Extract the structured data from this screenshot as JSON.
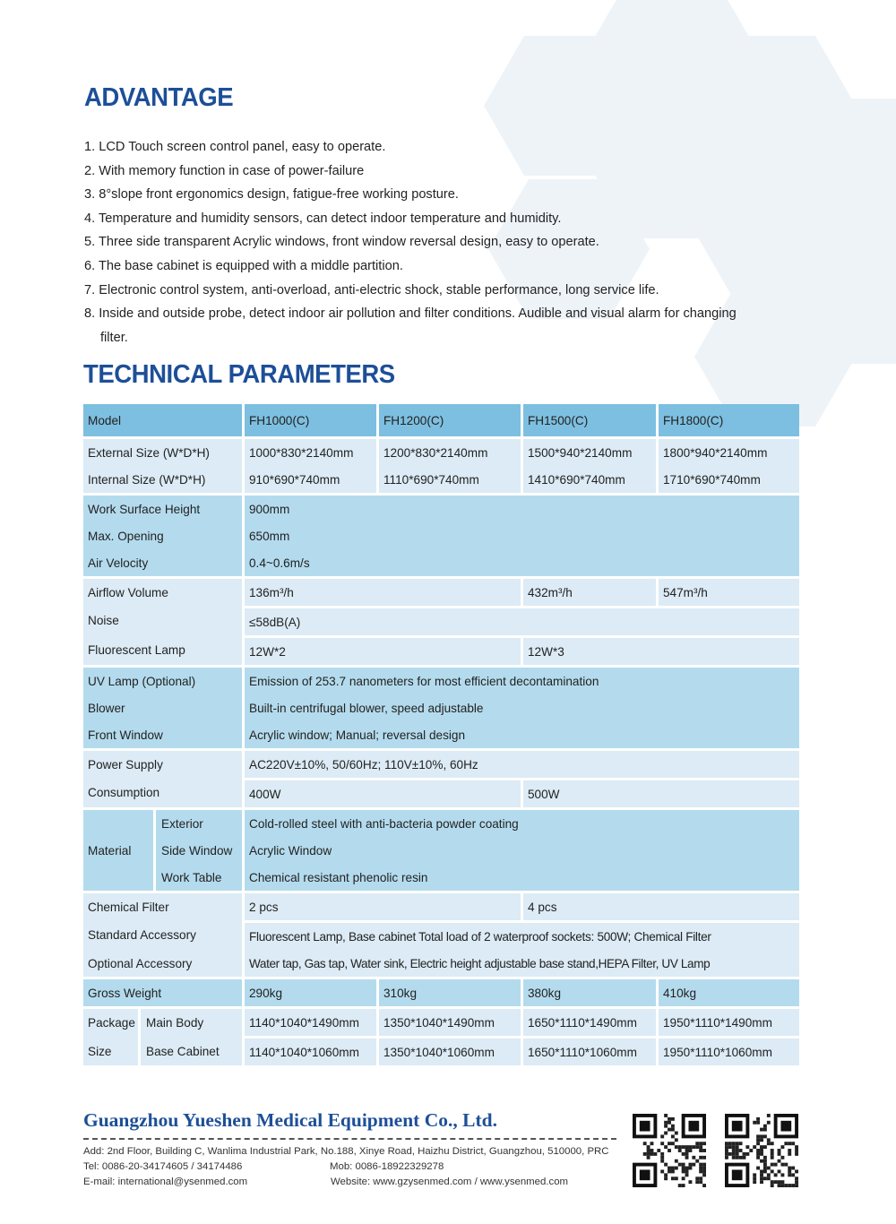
{
  "advantage": {
    "title": "ADVANTAGE",
    "items": [
      "1. LCD Touch screen control panel, easy to operate.",
      "2. With memory function in case of power-failure",
      "3. 8°slope front ergonomics design, fatigue-free working posture.",
      "4. Temperature and humidity sensors, can detect indoor temperature and humidity.",
      "5. Three side transparent Acrylic windows, front window reversal design, easy to operate.",
      "6. The base cabinet is equipped with a middle partition.",
      "7. Electronic control system, anti-overload, anti-electric shock, stable performance, long service life.",
      "8. Inside and outside probe, detect indoor air pollution and filter conditions. Audible and visual alarm for changing filter."
    ]
  },
  "technical": {
    "title": "TECHNICAL PARAMETERS",
    "model_label": "Model",
    "models": [
      "FH1000(C)",
      "FH1200(C)",
      "FH1500(C)",
      "FH1800(C)"
    ],
    "external_size": {
      "label": "External Size (W*D*H)",
      "values": [
        "1000*830*2140mm",
        "1200*830*2140mm",
        "1500*940*2140mm",
        "1800*940*2140mm"
      ]
    },
    "internal_size": {
      "label": "Internal Size (W*D*H)",
      "values": [
        "910*690*740mm",
        "1110*690*740mm",
        "1410*690*740mm",
        "1710*690*740mm"
      ]
    },
    "work_surface_height": {
      "label": "Work Surface Height",
      "value": "900mm"
    },
    "max_opening": {
      "label": "Max. Opening",
      "value": "650mm"
    },
    "air_velocity": {
      "label": "Air Velocity",
      "value": "0.4~0.6m/s"
    },
    "airflow_volume": {
      "label": "Airflow Volume",
      "values": [
        "136m³/h",
        "432m³/h",
        "547m³/h"
      ]
    },
    "noise": {
      "label": "Noise",
      "value": "≤58dB(A)"
    },
    "fluorescent_lamp": {
      "label": "Fluorescent Lamp",
      "values": [
        "12W*2",
        "12W*3"
      ]
    },
    "uv_lamp": {
      "label": "UV Lamp (Optional)",
      "value": "Emission of 253.7 nanometers for most efficient decontamination"
    },
    "blower": {
      "label": "Blower",
      "value": "Built-in centrifugal blower, speed adjustable"
    },
    "front_window": {
      "label": "Front Window",
      "value": "Acrylic window; Manual; reversal design"
    },
    "power_supply": {
      "label": "Power Supply",
      "value": "AC220V±10%, 50/60Hz; 110V±10%, 60Hz"
    },
    "consumption": {
      "label": "Consumption",
      "values": [
        "400W",
        "500W"
      ]
    },
    "material": {
      "label": "Material",
      "exterior": {
        "label": "Exterior",
        "value": "Cold-rolled steel with anti-bacteria powder coating"
      },
      "side_window": {
        "label": "Side Window",
        "value": "Acrylic Window"
      },
      "work_table": {
        "label": "Work Table",
        "value": "Chemical resistant phenolic resin"
      }
    },
    "chemical_filter": {
      "label": "Chemical Filter",
      "values": [
        "2 pcs",
        "4 pcs"
      ]
    },
    "standard_accessory": {
      "label": "Standard Accessory",
      "value": "Fluorescent Lamp, Base cabinet Total load of 2 waterproof sockets: 500W; Chemical Filter"
    },
    "optional_accessory": {
      "label": "Optional Accessory",
      "value": "Water tap, Gas tap, Water sink, Electric height adjustable base stand,HEPA Filter, UV Lamp"
    },
    "gross_weight": {
      "label": "Gross Weight",
      "values": [
        "290kg",
        "310kg",
        "380kg",
        "410kg"
      ]
    },
    "package_size": {
      "label_top": "Package",
      "label_bottom": "Size",
      "main_body": {
        "label": "Main Body",
        "values": [
          "1140*1040*1490mm",
          "1350*1040*1490mm",
          "1650*1110*1490mm",
          "1950*1110*1490mm"
        ]
      },
      "base_cabinet": {
        "label": "Base Cabinet",
        "values": [
          "1140*1040*1060mm",
          "1350*1040*1060mm",
          "1650*1110*1060mm",
          "1950*1110*1060mm"
        ]
      }
    }
  },
  "footer": {
    "company": "Guangzhou Yueshen Medical Equipment Co., Ltd.",
    "address": "Add: 2nd Floor, Building C, Wanlima Industrial Park, No.188, Xinye Road, Haizhu District, Guangzhou, 510000, PRC",
    "tel": "Tel: 0086-20-34174605 / 34174486",
    "mob": "Mob: 0086-18922329278",
    "email": "E-mail: international@ysenmed.com",
    "website": "Website: www.gzysenmed.com / www.ysenmed.com"
  },
  "colors": {
    "brand_blue": "#1d4f98",
    "header_cell": "#7dbfe0",
    "light_cell": "#dcebf5",
    "mid_cell": "#b4dbed"
  }
}
